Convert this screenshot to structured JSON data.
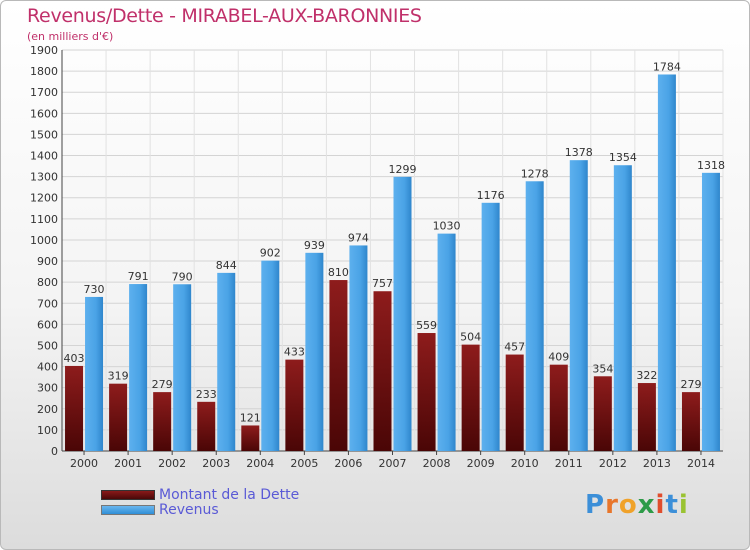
{
  "title": "Revenus/Dette - MIRABEL-AUX-BARONNIES",
  "subtitle": "(en milliers d'€)",
  "legend": {
    "dette": "Montant de la Dette",
    "revenus": "Revenus"
  },
  "logo": {
    "letters": [
      "P",
      "r",
      "o",
      "x",
      "i",
      "t",
      "i"
    ],
    "colors": [
      "#3c8fd8",
      "#e8762b",
      "#f0a22a",
      "#2d9b48",
      "#e04d2d",
      "#3c8fd8",
      "#9ac332"
    ]
  },
  "colors": {
    "dette": "#7a1616",
    "revenus": "#4aa3e6",
    "title": "#c0306a"
  },
  "chart_data": {
    "type": "bar",
    "title": "Revenus/Dette - MIRABEL-AUX-BARONNIES",
    "ylabel": "(en milliers d'€)",
    "categories": [
      "2000",
      "2001",
      "2002",
      "2003",
      "2004",
      "2005",
      "2006",
      "2007",
      "2008",
      "2009",
      "2010",
      "2011",
      "2012",
      "2013",
      "2014"
    ],
    "series": [
      {
        "name": "Montant de la Dette",
        "values": [
          403,
          319,
          279,
          233,
          121,
          433,
          810,
          757,
          559,
          504,
          457,
          409,
          354,
          322,
          279
        ]
      },
      {
        "name": "Revenus",
        "values": [
          730,
          791,
          790,
          844,
          902,
          939,
          974,
          1299,
          1030,
          1176,
          1278,
          1378,
          1354,
          1784,
          1318
        ]
      }
    ],
    "yticks": [
      0,
      100,
      200,
      300,
      400,
      500,
      600,
      700,
      800,
      900,
      1000,
      1100,
      1200,
      1300,
      1400,
      1500,
      1600,
      1700,
      1800,
      1900
    ],
    "ylim": [
      0,
      1900
    ],
    "grid": true,
    "legend_position": "bottom-left"
  }
}
